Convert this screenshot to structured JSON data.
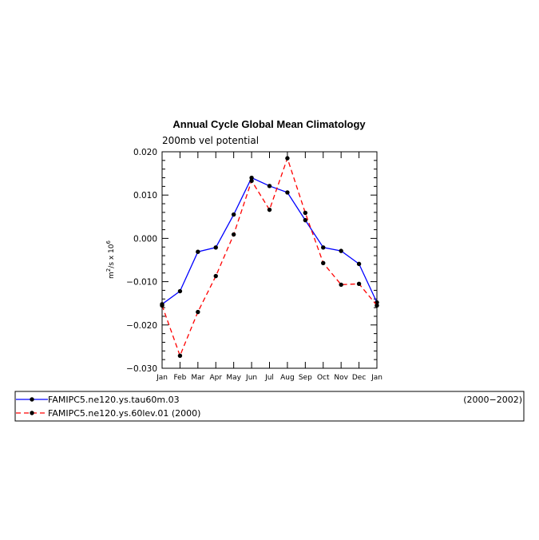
{
  "chart_data": {
    "type": "line",
    "title": "Annual Cycle Global Mean Climatology",
    "subtitle": "200mb vel potential",
    "ylabel": "m2/s x 10",
    "ylabel_parts": {
      "base": "m",
      "sup1": "2",
      "mid": "/s x 10",
      "sup2": "6"
    },
    "xlabel": "",
    "categories": [
      "Jan",
      "Feb",
      "Mar",
      "Apr",
      "May",
      "Jun",
      "Jul",
      "Aug",
      "Sep",
      "Oct",
      "Nov",
      "Dec",
      "Jan"
    ],
    "ylim": [
      -0.03,
      0.02
    ],
    "yticks": [
      -0.03,
      -0.02,
      -0.01,
      0.0,
      0.01,
      0.02
    ],
    "ytick_labels": [
      "−0.030",
      "−0.020",
      "−0.010",
      "0.000",
      "0.010",
      "0.020"
    ],
    "grid": false,
    "legend_position": "bottom",
    "series": [
      {
        "name": "FAMIPC5.ne120.ys.tau60m.03",
        "period": "(2000−2002)",
        "color": "#0000ff",
        "dash": "solid",
        "values": [
          -0.0152,
          -0.0122,
          -0.0031,
          -0.0021,
          0.0055,
          0.014,
          0.0121,
          0.0106,
          0.0042,
          -0.0021,
          -0.0029,
          -0.0059,
          -0.0148
        ]
      },
      {
        "name": "FAMIPC5.ne120.ys.60lev.01 (2000)",
        "period": "",
        "color": "#ff0000",
        "dash": "dashed",
        "values": [
          -0.0155,
          -0.0271,
          -0.017,
          -0.0087,
          0.0009,
          0.0133,
          0.0066,
          0.0185,
          0.0059,
          -0.0057,
          -0.0107,
          -0.0105,
          -0.0155
        ]
      }
    ]
  }
}
